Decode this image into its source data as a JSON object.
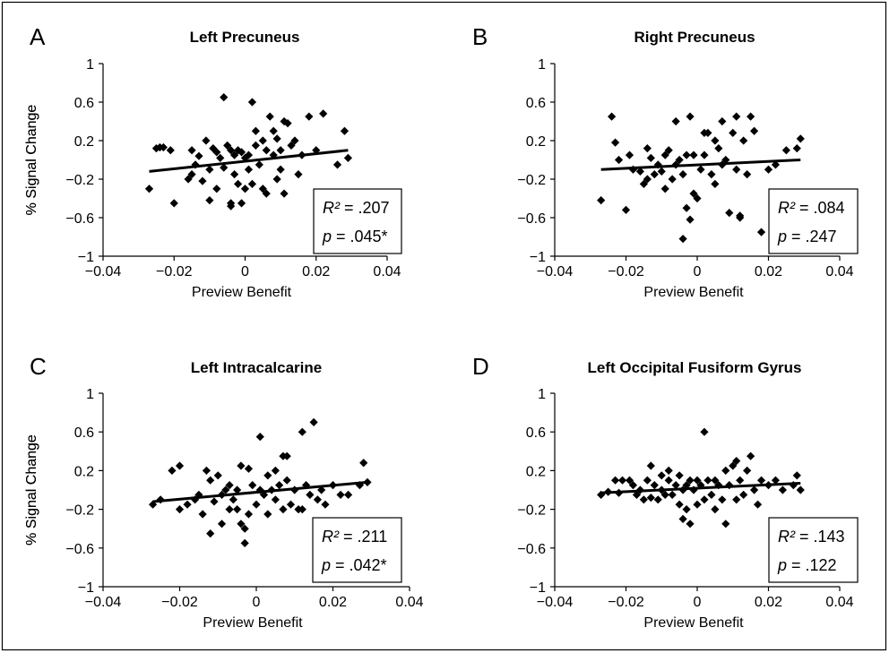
{
  "chart_data": [
    {
      "type": "scatter",
      "panel": "A",
      "title": "Left Precuneus",
      "xlabel": "Preview Benefit",
      "ylabel": "% Signal Change",
      "xlim": [
        -0.04,
        0.04
      ],
      "ylim": [
        -1,
        1
      ],
      "xticks": [
        -0.04,
        -0.02,
        0,
        0.02,
        0.04
      ],
      "xtick_labels": [
        "−0.04",
        "−0.02",
        "0",
        "0.02",
        "0.04"
      ],
      "yticks": [
        1,
        0.6,
        0.2,
        -0.2,
        -0.6,
        -1
      ],
      "ytick_labels": [
        "1",
        "0.6",
        "0.2",
        "−0.2",
        "−0.6",
        "−1"
      ],
      "grid": false,
      "r2_label": "R²",
      "r2_value": "= .207",
      "p_label": "p",
      "p_value": "= .045*",
      "trend": [
        [
          -0.027,
          -0.12
        ],
        [
          0.029,
          0.1
        ]
      ],
      "points": [
        [
          -0.027,
          -0.3
        ],
        [
          -0.025,
          0.12
        ],
        [
          -0.024,
          0.13
        ],
        [
          -0.023,
          0.13
        ],
        [
          -0.021,
          0.1
        ],
        [
          -0.02,
          -0.45
        ],
        [
          -0.016,
          -0.2
        ],
        [
          -0.015,
          0.1
        ],
        [
          -0.015,
          -0.15
        ],
        [
          -0.014,
          -0.05
        ],
        [
          -0.013,
          0.04
        ],
        [
          -0.012,
          -0.22
        ],
        [
          -0.011,
          0.2
        ],
        [
          -0.01,
          -0.42
        ],
        [
          -0.01,
          -0.1
        ],
        [
          -0.009,
          0.12
        ],
        [
          -0.008,
          0.08
        ],
        [
          -0.008,
          -0.3
        ],
        [
          -0.007,
          0.02
        ],
        [
          -0.006,
          0.65
        ],
        [
          -0.006,
          -0.08
        ],
        [
          -0.005,
          0.15
        ],
        [
          -0.004,
          0.1
        ],
        [
          -0.004,
          -0.45
        ],
        [
          -0.004,
          -0.48
        ],
        [
          -0.003,
          0.05
        ],
        [
          -0.003,
          -0.15
        ],
        [
          -0.002,
          0.1
        ],
        [
          -0.002,
          -0.25
        ],
        [
          -0.001,
          0.08
        ],
        [
          -0.001,
          -0.45
        ],
        [
          0,
          0.02
        ],
        [
          0,
          -0.3
        ],
        [
          0.001,
          0.05
        ],
        [
          0.001,
          -0.1
        ],
        [
          0.002,
          0.6
        ],
        [
          0.002,
          -0.25
        ],
        [
          0.003,
          0.3
        ],
        [
          0.003,
          0.15
        ],
        [
          0.004,
          -0.05
        ],
        [
          0.005,
          0.2
        ],
        [
          0.005,
          -0.3
        ],
        [
          0.006,
          0.1
        ],
        [
          0.006,
          -0.35
        ],
        [
          0.007,
          0.45
        ],
        [
          0.008,
          0.05
        ],
        [
          0.008,
          0.3
        ],
        [
          0.009,
          0.22
        ],
        [
          0.009,
          -0.2
        ],
        [
          0.01,
          0.1
        ],
        [
          0.01,
          -0.1
        ],
        [
          0.011,
          0.4
        ],
        [
          0.011,
          -0.35
        ],
        [
          0.012,
          0.38
        ],
        [
          0.013,
          0.15
        ],
        [
          0.014,
          0.2
        ],
        [
          0.015,
          -0.15
        ],
        [
          0.016,
          0.05
        ],
        [
          0.018,
          0.45
        ],
        [
          0.02,
          0.1
        ],
        [
          0.022,
          0.48
        ],
        [
          0.026,
          -0.05
        ],
        [
          0.028,
          0.3
        ],
        [
          0.029,
          0.02
        ]
      ]
    },
    {
      "type": "scatter",
      "panel": "B",
      "title": "Right Precuneus",
      "xlabel": "Preview Benefit",
      "ylabel": "% Signal Change",
      "xlim": [
        -0.04,
        0.04
      ],
      "ylim": [
        -1,
        1
      ],
      "xticks": [
        -0.04,
        -0.02,
        0,
        0.02,
        0.04
      ],
      "xtick_labels": [
        "−0.04",
        "−0.02",
        "0",
        "0.02",
        "0.04"
      ],
      "yticks": [
        1,
        0.6,
        0.2,
        -0.2,
        -0.6,
        -1
      ],
      "ytick_labels": [
        "1",
        "0.6",
        "0.2",
        "−0.2",
        "−0.6",
        "−1"
      ],
      "grid": false,
      "r2_label": "R²",
      "r2_value": "= .084",
      "p_label": "p",
      "p_value": "= .247",
      "trend": [
        [
          -0.027,
          -0.1
        ],
        [
          0.029,
          0.0
        ]
      ],
      "points": [
        [
          -0.027,
          -0.42
        ],
        [
          -0.024,
          0.45
        ],
        [
          -0.023,
          0.18
        ],
        [
          -0.022,
          0.0
        ],
        [
          -0.02,
          -0.52
        ],
        [
          -0.019,
          0.05
        ],
        [
          -0.018,
          -0.1
        ],
        [
          -0.016,
          -0.12
        ],
        [
          -0.015,
          -0.25
        ],
        [
          -0.014,
          0.12
        ],
        [
          -0.014,
          -0.2
        ],
        [
          -0.013,
          0.02
        ],
        [
          -0.012,
          -0.15
        ],
        [
          -0.011,
          -0.05
        ],
        [
          -0.01,
          -0.12
        ],
        [
          -0.009,
          0.05
        ],
        [
          -0.009,
          -0.3
        ],
        [
          -0.008,
          0.1
        ],
        [
          -0.007,
          -0.2
        ],
        [
          -0.006,
          0.4
        ],
        [
          -0.006,
          -0.05
        ],
        [
          -0.005,
          0.0
        ],
        [
          -0.004,
          -0.15
        ],
        [
          -0.004,
          -0.82
        ],
        [
          -0.003,
          0.05
        ],
        [
          -0.003,
          -0.5
        ],
        [
          -0.002,
          0.45
        ],
        [
          -0.002,
          -0.62
        ],
        [
          -0.001,
          0.05
        ],
        [
          -0.001,
          -0.35
        ],
        [
          0,
          -0.4
        ],
        [
          0.001,
          -0.1
        ],
        [
          0.002,
          0.28
        ],
        [
          0.002,
          0.05
        ],
        [
          0.003,
          0.28
        ],
        [
          0.004,
          -0.15
        ],
        [
          0.005,
          0.2
        ],
        [
          0.005,
          -0.25
        ],
        [
          0.006,
          0.12
        ],
        [
          0.007,
          0.4
        ],
        [
          0.007,
          -0.05
        ],
        [
          0.008,
          0.0
        ],
        [
          0.009,
          -0.55
        ],
        [
          0.01,
          0.28
        ],
        [
          0.011,
          0.45
        ],
        [
          0.011,
          -0.1
        ],
        [
          0.012,
          -0.58
        ],
        [
          0.012,
          -0.6
        ],
        [
          0.013,
          0.2
        ],
        [
          0.014,
          -0.15
        ],
        [
          0.015,
          0.45
        ],
        [
          0.016,
          0.3
        ],
        [
          0.018,
          -0.75
        ],
        [
          0.02,
          -0.1
        ],
        [
          0.022,
          -0.05
        ],
        [
          0.025,
          0.1
        ],
        [
          0.028,
          0.12
        ],
        [
          0.029,
          0.22
        ]
      ]
    },
    {
      "type": "scatter",
      "panel": "C",
      "title": "Left Intracalcarine",
      "xlabel": "Preview Benefit",
      "ylabel": "% Signal Change",
      "xlim": [
        -0.04,
        0.04
      ],
      "ylim": [
        -1,
        1
      ],
      "xticks": [
        -0.04,
        -0.02,
        0,
        0.02,
        0.04
      ],
      "xtick_labels": [
        "−0.04",
        "−0.02",
        "0",
        "0.02",
        "0.04"
      ],
      "yticks": [
        1,
        0.6,
        0.2,
        -0.2,
        -0.6,
        -1
      ],
      "ytick_labels": [
        "1",
        "0.6",
        "0.2",
        "−0.2",
        "−0.6",
        "−1"
      ],
      "grid": false,
      "r2_label": "R²",
      "r2_value": "= .211",
      "p_label": "p",
      "p_value": "= .042*",
      "trend": [
        [
          -0.027,
          -0.12
        ],
        [
          0.029,
          0.08
        ]
      ],
      "points": [
        [
          -0.027,
          -0.15
        ],
        [
          -0.025,
          -0.1
        ],
        [
          -0.022,
          0.2
        ],
        [
          -0.02,
          -0.2
        ],
        [
          -0.02,
          0.25
        ],
        [
          -0.018,
          -0.15
        ],
        [
          -0.016,
          -0.1
        ],
        [
          -0.015,
          -0.05
        ],
        [
          -0.014,
          -0.25
        ],
        [
          -0.013,
          0.2
        ],
        [
          -0.012,
          -0.45
        ],
        [
          -0.012,
          0.1
        ],
        [
          -0.011,
          -0.12
        ],
        [
          -0.01,
          0.15
        ],
        [
          -0.009,
          -0.05
        ],
        [
          -0.009,
          -0.35
        ],
        [
          -0.008,
          0.0
        ],
        [
          -0.007,
          -0.2
        ],
        [
          -0.007,
          0.05
        ],
        [
          -0.006,
          -0.1
        ],
        [
          -0.005,
          0.0
        ],
        [
          -0.005,
          -0.2
        ],
        [
          -0.004,
          -0.35
        ],
        [
          -0.004,
          0.25
        ],
        [
          -0.003,
          -0.4
        ],
        [
          -0.003,
          -0.55
        ],
        [
          -0.002,
          0.22
        ],
        [
          -0.002,
          -0.25
        ],
        [
          -0.001,
          0.05
        ],
        [
          0,
          -0.15
        ],
        [
          0.001,
          0.0
        ],
        [
          0.001,
          0.55
        ],
        [
          0.002,
          -0.05
        ],
        [
          0.003,
          0.15
        ],
        [
          0.003,
          -0.25
        ],
        [
          0.004,
          0.0
        ],
        [
          0.005,
          0.2
        ],
        [
          0.005,
          -0.1
        ],
        [
          0.006,
          0.05
        ],
        [
          0.007,
          0.35
        ],
        [
          0.007,
          -0.2
        ],
        [
          0.008,
          0.1
        ],
        [
          0.008,
          0.35
        ],
        [
          0.009,
          -0.15
        ],
        [
          0.01,
          0.0
        ],
        [
          0.011,
          -0.2
        ],
        [
          0.012,
          0.6
        ],
        [
          0.012,
          -0.2
        ],
        [
          0.013,
          0.05
        ],
        [
          0.014,
          -0.05
        ],
        [
          0.015,
          0.7
        ],
        [
          0.016,
          -0.1
        ],
        [
          0.017,
          0.0
        ],
        [
          0.018,
          -0.15
        ],
        [
          0.02,
          0.05
        ],
        [
          0.022,
          -0.05
        ],
        [
          0.024,
          -0.05
        ],
        [
          0.027,
          0.05
        ],
        [
          0.028,
          0.28
        ],
        [
          0.029,
          0.08
        ]
      ]
    },
    {
      "type": "scatter",
      "panel": "D",
      "title": "Left Occipital Fusiform Gyrus",
      "xlabel": "Preview Benefit",
      "ylabel": "% Signal Change",
      "xlim": [
        -0.04,
        0.04
      ],
      "ylim": [
        -1,
        1
      ],
      "xticks": [
        -0.04,
        -0.02,
        0,
        0.02,
        0.04
      ],
      "xtick_labels": [
        "−0.04",
        "−0.02",
        "0",
        "0.02",
        "0.04"
      ],
      "yticks": [
        1,
        0.6,
        0.2,
        -0.2,
        -0.6,
        -1
      ],
      "ytick_labels": [
        "1",
        "0.6",
        "0.2",
        "−0.2",
        "−0.6",
        "−1"
      ],
      "grid": false,
      "r2_label": "R²",
      "r2_value": "= .143",
      "p_label": "p",
      "p_value": "= .122",
      "trend": [
        [
          -0.027,
          -0.03
        ],
        [
          0.029,
          0.07
        ]
      ],
      "points": [
        [
          -0.027,
          -0.05
        ],
        [
          -0.025,
          -0.02
        ],
        [
          -0.023,
          0.1
        ],
        [
          -0.022,
          -0.03
        ],
        [
          -0.021,
          0.1
        ],
        [
          -0.019,
          0.1
        ],
        [
          -0.018,
          0.05
        ],
        [
          -0.017,
          -0.05
        ],
        [
          -0.016,
          0.0
        ],
        [
          -0.015,
          -0.1
        ],
        [
          -0.014,
          0.1
        ],
        [
          -0.013,
          0.25
        ],
        [
          -0.013,
          -0.08
        ],
        [
          -0.012,
          0.05
        ],
        [
          -0.011,
          -0.1
        ],
        [
          -0.01,
          0.15
        ],
        [
          -0.01,
          0.0
        ],
        [
          -0.009,
          -0.05
        ],
        [
          -0.008,
          0.1
        ],
        [
          -0.008,
          0.2
        ],
        [
          -0.007,
          -0.05
        ],
        [
          -0.006,
          0.05
        ],
        [
          -0.005,
          0.15
        ],
        [
          -0.005,
          -0.15
        ],
        [
          -0.004,
          -0.3
        ],
        [
          -0.004,
          0.0
        ],
        [
          -0.003,
          0.05
        ],
        [
          -0.003,
          -0.2
        ],
        [
          -0.002,
          0.1
        ],
        [
          -0.002,
          -0.35
        ],
        [
          -0.001,
          0.0
        ],
        [
          0,
          0.1
        ],
        [
          0,
          -0.15
        ],
        [
          0.001,
          0.05
        ],
        [
          0.002,
          0.6
        ],
        [
          0.002,
          -0.1
        ],
        [
          0.003,
          0.1
        ],
        [
          0.004,
          -0.05
        ],
        [
          0.005,
          0.1
        ],
        [
          0.005,
          -0.2
        ],
        [
          0.006,
          0.05
        ],
        [
          0.007,
          -0.1
        ],
        [
          0.008,
          0.2
        ],
        [
          0.008,
          -0.35
        ],
        [
          0.009,
          0.05
        ],
        [
          0.01,
          0.25
        ],
        [
          0.011,
          0.3
        ],
        [
          0.011,
          -0.1
        ],
        [
          0.012,
          0.1
        ],
        [
          0.013,
          -0.05
        ],
        [
          0.014,
          0.2
        ],
        [
          0.015,
          0.35
        ],
        [
          0.016,
          0.0
        ],
        [
          0.017,
          -0.15
        ],
        [
          0.018,
          0.1
        ],
        [
          0.02,
          0.05
        ],
        [
          0.022,
          0.1
        ],
        [
          0.024,
          0.0
        ],
        [
          0.027,
          0.05
        ],
        [
          0.028,
          0.15
        ],
        [
          0.029,
          0.0
        ]
      ]
    }
  ]
}
